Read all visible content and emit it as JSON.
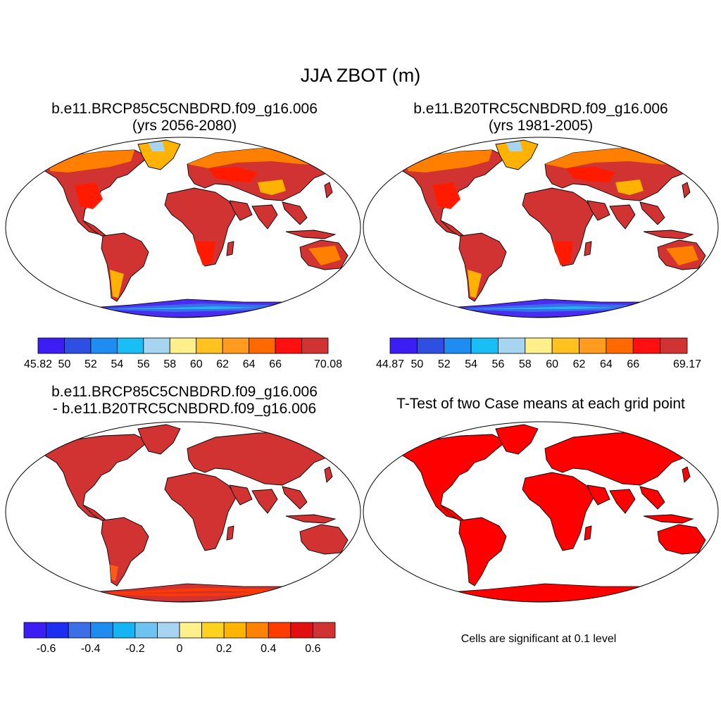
{
  "main_title": "JJA ZBOT (m)",
  "colors": {
    "ocean": "#ffffff",
    "outline": "#000000",
    "sea_ice_a": "#4a2cf2",
    "sea_ice_b": "#3a6ee8"
  },
  "panels": [
    {
      "title_line1": "b.e11.BRCP85C5CNBDRD.f09_g16.006",
      "title_line2": "(yrs 2056-2080)",
      "land_base": "#d13232",
      "accent": "#ff1a00",
      "accent2": "#ff7f00",
      "accent3": "#ffb300",
      "antarctica": [
        "#4a2cf2",
        "#3a6ee8",
        "#23b4f0"
      ]
    },
    {
      "title_line1": "b.e11.B20TRC5CNBDRD.f09_g16.006",
      "title_line2": "(yrs 1981-2005)",
      "land_base": "#d13232",
      "accent": "#ff1a00",
      "accent2": "#ff7f00",
      "accent3": "#ffb300",
      "antarctica": [
        "#4a2cf2",
        "#3a6ee8",
        "#23b4f0"
      ]
    },
    {
      "title_line1": "b.e11.BRCP85C5CNBDRD.f09_g16.006",
      "title_line2": "- b.e11.B20TRC5CNBDRD.f09_g16.006",
      "land_base": "#d13232",
      "accent": "#ff3a00",
      "accent2": "#ff5a1a",
      "accent3": "#d13232",
      "antarctica": [
        "#d13232",
        "#ff3a00",
        "#d13232"
      ]
    },
    {
      "title_line1": "T-Test of two Case means at each grid point",
      "title_line2": "",
      "land_base": "#ff0000",
      "accent": "#ff0000",
      "accent2": "#ff0000",
      "accent3": "#ff0000",
      "antarctica": [
        "#ff0000",
        "#ff0000",
        "#ff0000"
      ]
    }
  ],
  "colorbars": [
    {
      "colors": [
        "#3c1ef5",
        "#2f4fe0",
        "#1e8cf0",
        "#18bef5",
        "#a7d4f0",
        "#fff08c",
        "#ffc21e",
        "#ff9b1e",
        "#ff6a00",
        "#ff0f0f",
        "#d13232"
      ],
      "labels": [
        "45.82",
        "50",
        "52",
        "54",
        "56",
        "58",
        "60",
        "62",
        "64",
        "66",
        "70.08"
      ]
    },
    {
      "colors": [
        "#3c1ef5",
        "#2f4fe0",
        "#1e8cf0",
        "#18bef5",
        "#a7d4f0",
        "#fff08c",
        "#ffc21e",
        "#ff9b1e",
        "#ff6a00",
        "#ff0f0f",
        "#d13232"
      ],
      "labels": [
        "44.87",
        "50",
        "52",
        "54",
        "56",
        "58",
        "60",
        "62",
        "64",
        "66",
        "69.17"
      ]
    },
    {
      "colors": [
        "#3c1ef5",
        "#1e2ef0",
        "#3c6ee6",
        "#1e8cf0",
        "#14b4f5",
        "#6ec3f0",
        "#a7d4f0",
        "#fff08c",
        "#ffd21e",
        "#ffb400",
        "#ff8200",
        "#ff3c00",
        "#e10f0f",
        "#d13232"
      ],
      "labels": [
        "-0.6",
        "-0.4",
        "-0.2",
        "0",
        "0.2",
        "0.4",
        "0.6"
      ]
    }
  ],
  "significance_note": "Cells are significant at 0.1 level"
}
